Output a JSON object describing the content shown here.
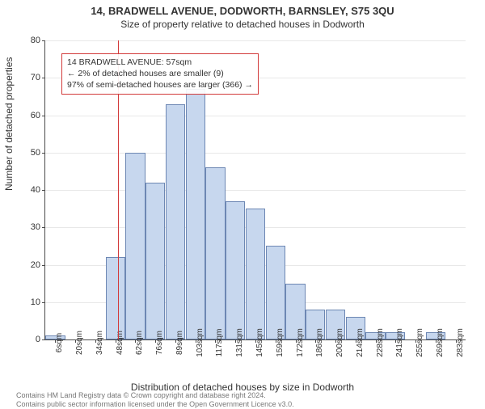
{
  "title": "14, BRADWELL AVENUE, DODWORTH, BARNSLEY, S75 3QU",
  "subtitle": "Size of property relative to detached houses in Dodworth",
  "ylabel": "Number of detached properties",
  "xlabel": "Distribution of detached houses by size in Dodworth",
  "footnote_line1": "Contains HM Land Registry data © Crown copyright and database right 2024.",
  "footnote_line2": "Contains public sector information licensed under the Open Government Licence v3.0.",
  "chart": {
    "type": "histogram",
    "ylim": [
      0,
      80
    ],
    "ytick_step": 10,
    "background_color": "#ffffff",
    "grid_color": "#e8e8e8",
    "axis_color": "#4a4a4a",
    "bar_fill": "#c7d7ee",
    "bar_stroke": "#6d87b3",
    "bar_stroke_width": 1,
    "categories": [
      "6sqm",
      "20sqm",
      "34sqm",
      "48sqm",
      "62sqm",
      "76sqm",
      "89sqm",
      "103sqm",
      "117sqm",
      "131sqm",
      "145sqm",
      "159sqm",
      "172sqm",
      "186sqm",
      "200sqm",
      "214sqm",
      "228sqm",
      "241sqm",
      "255sqm",
      "269sqm",
      "283sqm"
    ],
    "values": [
      1,
      0,
      0,
      22,
      50,
      42,
      63,
      67,
      46,
      37,
      35,
      25,
      15,
      8,
      8,
      6,
      2,
      2,
      0,
      2,
      0
    ],
    "label_fontsize": 10,
    "axis_label_fontsize": 12,
    "title_fontsize": 13
  },
  "marker": {
    "x_value_sqm": 57,
    "color": "#d23a3a",
    "line_width": 1
  },
  "annotation": {
    "border_color": "#d23a3a",
    "line1": "14 BRADWELL AVENUE: 57sqm",
    "line2": "← 2% of detached houses are smaller (9)",
    "line3": "97% of semi-detached houses are larger (366) →"
  }
}
